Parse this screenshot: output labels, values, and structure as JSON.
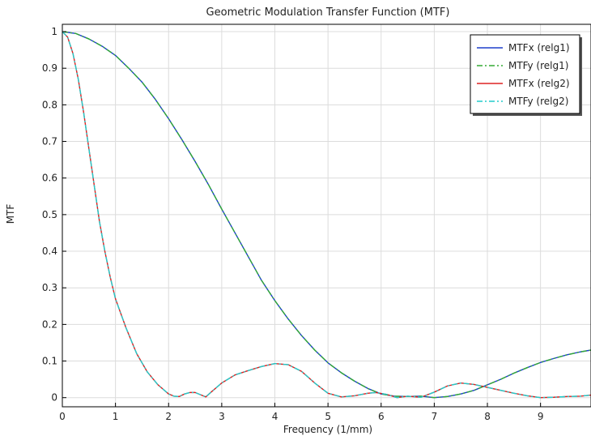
{
  "chart_data": {
    "type": "line",
    "title": "Geometric Modulation Transfer Function (MTF)",
    "xlabel": "Frequency (1/mm)",
    "ylabel": "MTF",
    "xlim": [
      0,
      9.95
    ],
    "ylim": [
      -0.025,
      1.02
    ],
    "xticks": [
      0,
      1,
      2,
      3,
      4,
      5,
      6,
      7,
      8,
      9
    ],
    "yticks": [
      0,
      0.1,
      0.2,
      0.3,
      0.4,
      0.5,
      0.6,
      0.7,
      0.8,
      0.9,
      1
    ],
    "grid": true,
    "legend_position": "top-right",
    "series": [
      {
        "name": "MTFx (relg1)",
        "color": "#1f3fcc",
        "dash": "solid",
        "x": [
          0,
          0.25,
          0.5,
          0.75,
          1,
          1.25,
          1.5,
          1.75,
          2,
          2.25,
          2.5,
          2.75,
          3,
          3.25,
          3.5,
          3.75,
          4,
          4.25,
          4.5,
          4.75,
          5,
          5.25,
          5.5,
          5.75,
          6,
          6.25,
          6.5,
          6.75,
          7,
          7.25,
          7.5,
          7.75,
          8,
          8.25,
          8.5,
          8.75,
          9,
          9.25,
          9.5,
          9.75,
          9.95
        ],
        "y": [
          1.0,
          0.995,
          0.98,
          0.96,
          0.935,
          0.9,
          0.862,
          0.815,
          0.762,
          0.705,
          0.645,
          0.582,
          0.515,
          0.45,
          0.385,
          0.32,
          0.265,
          0.215,
          0.17,
          0.13,
          0.095,
          0.068,
          0.045,
          0.025,
          0.01,
          0.004,
          0.003,
          0.004,
          0.0,
          0.003,
          0.01,
          0.02,
          0.035,
          0.05,
          0.067,
          0.082,
          0.096,
          0.107,
          0.117,
          0.125,
          0.13
        ]
      },
      {
        "name": "MTFy (relg1)",
        "color": "#33aa33",
        "dash": "dashdot",
        "x": [
          0,
          0.25,
          0.5,
          0.75,
          1,
          1.25,
          1.5,
          1.75,
          2,
          2.25,
          2.5,
          2.75,
          3,
          3.25,
          3.5,
          3.75,
          4,
          4.25,
          4.5,
          4.75,
          5,
          5.25,
          5.5,
          5.75,
          6,
          6.25,
          6.5,
          6.75,
          7,
          7.25,
          7.5,
          7.75,
          8,
          8.25,
          8.5,
          8.75,
          9,
          9.25,
          9.5,
          9.75,
          9.95
        ],
        "y": [
          1.0,
          0.995,
          0.98,
          0.96,
          0.935,
          0.9,
          0.862,
          0.815,
          0.762,
          0.705,
          0.645,
          0.582,
          0.515,
          0.45,
          0.385,
          0.32,
          0.265,
          0.215,
          0.17,
          0.13,
          0.095,
          0.068,
          0.045,
          0.025,
          0.01,
          0.004,
          0.003,
          0.004,
          0.0,
          0.003,
          0.01,
          0.02,
          0.035,
          0.05,
          0.067,
          0.082,
          0.096,
          0.107,
          0.117,
          0.125,
          0.13
        ]
      },
      {
        "name": "MTFx (relg2)",
        "color": "#dd2222",
        "dash": "solid",
        "x": [
          0,
          0.1,
          0.2,
          0.3,
          0.4,
          0.5,
          0.6,
          0.7,
          0.8,
          0.9,
          1.0,
          1.2,
          1.4,
          1.6,
          1.8,
          2.0,
          2.1,
          2.2,
          2.3,
          2.4,
          2.5,
          2.6,
          2.7,
          2.8,
          3.0,
          3.25,
          3.5,
          3.75,
          4.0,
          4.25,
          4.5,
          4.75,
          5.0,
          5.25,
          5.5,
          5.75,
          5.9,
          6.1,
          6.3,
          6.5,
          6.75,
          7.0,
          7.25,
          7.5,
          7.75,
          8.0,
          8.25,
          8.5,
          8.75,
          9.0,
          9.25,
          9.5,
          9.75,
          9.95
        ],
        "y": [
          1.0,
          0.985,
          0.94,
          0.87,
          0.78,
          0.68,
          0.58,
          0.48,
          0.4,
          0.33,
          0.27,
          0.19,
          0.12,
          0.07,
          0.035,
          0.01,
          0.004,
          0.003,
          0.01,
          0.014,
          0.014,
          0.008,
          0.002,
          0.015,
          0.04,
          0.062,
          0.074,
          0.085,
          0.093,
          0.09,
          0.072,
          0.04,
          0.012,
          0.002,
          0.005,
          0.012,
          0.014,
          0.009,
          0.0,
          0.004,
          0.001,
          0.015,
          0.032,
          0.04,
          0.036,
          0.028,
          0.02,
          0.012,
          0.005,
          0.0,
          0.001,
          0.003,
          0.004,
          0.007
        ]
      },
      {
        "name": "MTFy (relg2)",
        "color": "#22cccc",
        "dash": "dashdot",
        "x": [
          0,
          0.1,
          0.2,
          0.3,
          0.4,
          0.5,
          0.6,
          0.7,
          0.8,
          0.9,
          1.0,
          1.2,
          1.4,
          1.6,
          1.8,
          2.0,
          2.1,
          2.2,
          2.3,
          2.4,
          2.5,
          2.6,
          2.7,
          2.8,
          3.0,
          3.25,
          3.5,
          3.75,
          4.0,
          4.25,
          4.5,
          4.75,
          5.0,
          5.25,
          5.5,
          5.75,
          5.9,
          6.1,
          6.3,
          6.5,
          6.75,
          7.0,
          7.25,
          7.5,
          7.75,
          8.0,
          8.25,
          8.5,
          8.75,
          9.0,
          9.25,
          9.5,
          9.75,
          9.95
        ],
        "y": [
          1.0,
          0.985,
          0.94,
          0.87,
          0.78,
          0.68,
          0.58,
          0.48,
          0.4,
          0.33,
          0.27,
          0.19,
          0.12,
          0.07,
          0.035,
          0.01,
          0.004,
          0.003,
          0.01,
          0.014,
          0.014,
          0.008,
          0.002,
          0.015,
          0.04,
          0.062,
          0.074,
          0.085,
          0.093,
          0.09,
          0.072,
          0.04,
          0.012,
          0.002,
          0.005,
          0.012,
          0.014,
          0.009,
          0.0,
          0.004,
          0.001,
          0.015,
          0.032,
          0.04,
          0.036,
          0.028,
          0.02,
          0.012,
          0.005,
          0.0,
          0.001,
          0.003,
          0.004,
          0.007
        ]
      }
    ]
  }
}
